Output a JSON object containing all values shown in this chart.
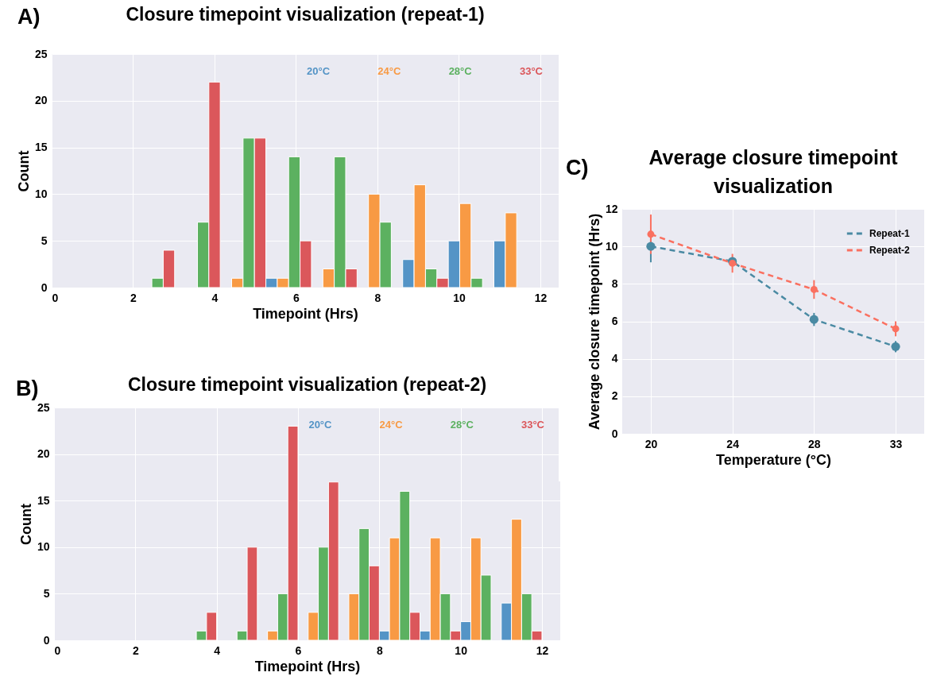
{
  "chart_data": [
    {
      "type": "histogram",
      "title": "Closure timepoint visualization (repeat-1)",
      "annotations": [
        "A)"
      ],
      "xlabel": "Timepoint (Hrs)",
      "ylabel": "Count",
      "bins": [
        1.9,
        3.02,
        4.14,
        5.26,
        6.38,
        7.5,
        8.62,
        9.74,
        10.86,
        11.98
      ],
      "series": [
        {
          "name": "20°C",
          "color": "#5494c6",
          "values": [
            0,
            0,
            0,
            1,
            0,
            0,
            3,
            5,
            5
          ]
        },
        {
          "name": "24°C",
          "color": "#f89a44",
          "values": [
            0,
            0,
            1,
            1,
            2,
            10,
            11,
            9,
            8
          ]
        },
        {
          "name": "28°C",
          "color": "#5cb160",
          "values": [
            1,
            7,
            16,
            14,
            14,
            7,
            2,
            1,
            0
          ]
        },
        {
          "name": "33°C",
          "color": "#db575b",
          "values": [
            4,
            22,
            16,
            5,
            2,
            0,
            1,
            0,
            0
          ]
        }
      ],
      "xlim": [
        0,
        12.45
      ],
      "xticks": [
        0,
        2,
        4,
        6,
        8,
        10,
        12
      ],
      "ylim": [
        0,
        25
      ],
      "yticks": [
        0,
        5,
        10,
        15,
        20,
        25
      ],
      "grid": true,
      "legend": "top right"
    },
    {
      "type": "histogram",
      "title": "Closure timepoint visualization (repeat-2)",
      "annotations": [
        "B)"
      ],
      "xlabel": "Timepoint (Hrs)",
      "ylabel": "Count",
      "bins": [
        3,
        4,
        5,
        6,
        7,
        8,
        9,
        10,
        11,
        12
      ],
      "series": [
        {
          "name": "20°C",
          "color": "#5494c6",
          "values": [
            0,
            0,
            0,
            0,
            0,
            1,
            1,
            2,
            4
          ]
        },
        {
          "name": "24°C",
          "color": "#f89a44",
          "values": [
            0,
            0,
            1,
            3,
            5,
            11,
            11,
            11,
            13
          ]
        },
        {
          "name": "28°C",
          "color": "#5cb160",
          "values": [
            1,
            1,
            5,
            10,
            12,
            16,
            5,
            7,
            5
          ]
        },
        {
          "name": "33°C",
          "color": "#db575b",
          "values": [
            3,
            10,
            23,
            17,
            8,
            3,
            1,
            0,
            1
          ]
        }
      ],
      "xlim": [
        0,
        12.45
      ],
      "xticks": [
        0,
        2,
        4,
        6,
        8,
        10,
        12
      ],
      "ylim": [
        0,
        25
      ],
      "yticks": [
        0,
        5,
        10,
        15,
        20,
        25
      ],
      "grid": true,
      "legend": "top right"
    },
    {
      "type": "line",
      "title": "Average closure timepoint visualization",
      "annotations": [
        "C)"
      ],
      "xlabel": "Temperature (°C)",
      "ylabel": "Average closure timepoint (Hrs)",
      "categories": [
        "20",
        "24",
        "28",
        "33"
      ],
      "series": [
        {
          "name": "Repeat-1",
          "color": "#4a8aa3",
          "values": [
            10.0,
            9.2,
            6.1,
            4.65
          ],
          "errors": [
            0.85,
            null,
            0.35,
            0.3
          ]
        },
        {
          "name": "Repeat-2",
          "color": "#fa7060",
          "values": [
            10.65,
            9.1,
            7.7,
            5.6
          ],
          "errors": [
            1.05,
            0.5,
            0.5,
            0.4
          ]
        }
      ],
      "ylim": [
        0,
        12
      ],
      "yticks": [
        0,
        2,
        4,
        6,
        8,
        10,
        12
      ],
      "grid": true,
      "legend": "top right",
      "marker": "circle",
      "line_style": "dashed"
    }
  ]
}
